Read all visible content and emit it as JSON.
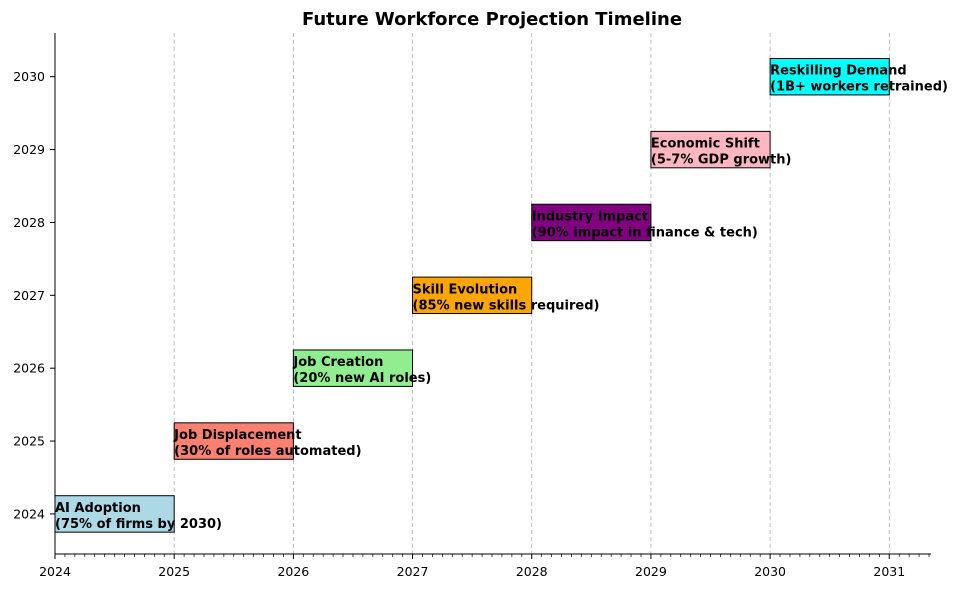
{
  "chart_data": {
    "type": "bar",
    "title": "Future Workforce Projection Timeline",
    "xlabel": "",
    "ylabel": "",
    "xlim": [
      2024,
      2031.35
    ],
    "ylim": [
      2023.45,
      2030.6
    ],
    "x_ticks": [
      "2024",
      "2025",
      "2026",
      "2027",
      "2028",
      "2029",
      "2030",
      "2031"
    ],
    "y_ticks": [
      "2024",
      "2025",
      "2026",
      "2027",
      "2028",
      "2029",
      "2030"
    ],
    "grid": "x-dashed",
    "bars": [
      {
        "start": 2024,
        "end": 2025,
        "y": 2024,
        "color": "#add8e6",
        "label_line1": "AI Adoption",
        "label_line2": "(75% of firms by 2030)"
      },
      {
        "start": 2025,
        "end": 2026,
        "y": 2025,
        "color": "#fa8072",
        "label_line1": "Job Displacement",
        "label_line2": "(30% of roles automated)"
      },
      {
        "start": 2026,
        "end": 2027,
        "y": 2026,
        "color": "#90ee90",
        "label_line1": "Job Creation",
        "label_line2": "(20% new AI roles)"
      },
      {
        "start": 2027,
        "end": 2028,
        "y": 2027,
        "color": "#ffa500",
        "label_line1": "Skill Evolution",
        "label_line2": "(85% new skills required)"
      },
      {
        "start": 2028,
        "end": 2029,
        "y": 2028,
        "color": "#800080",
        "label_line1": "Industry Impact",
        "label_line2": "(90% impact in finance & tech)"
      },
      {
        "start": 2029,
        "end": 2030,
        "y": 2029,
        "color": "#ffb6c1",
        "label_line1": "Economic Shift",
        "label_line2": "(5-7% GDP growth)"
      },
      {
        "start": 2030,
        "end": 2031,
        "y": 2030,
        "color": "#00ffff",
        "label_line1": "Reskilling Demand",
        "label_line2": "(1B+ workers retrained)"
      }
    ]
  }
}
